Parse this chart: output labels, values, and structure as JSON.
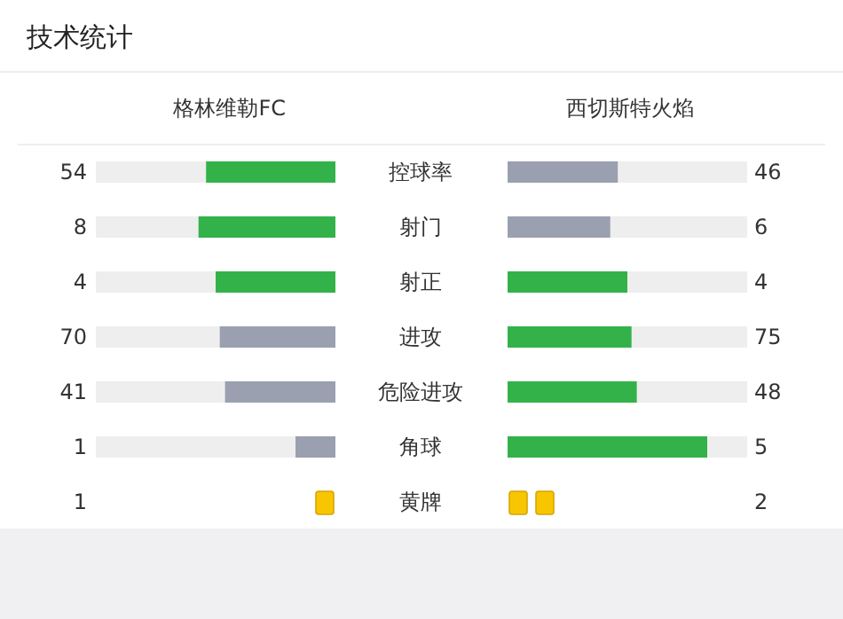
{
  "chart_data": {
    "type": "other",
    "title": "技术统计",
    "data_labels": true,
    "categories": [
      "控球率",
      "射门",
      "射正",
      "进攻",
      "危险进攻",
      "角球",
      "黄牌"
    ],
    "series": [
      {
        "name": "格林维勒FC",
        "values": [
          54,
          8,
          4,
          70,
          41,
          1,
          1
        ],
        "colors": [
          "#33b249",
          "#33b249",
          "#33b249",
          "#9aa0b0",
          "#9aa0b0",
          "#9aa0b0",
          "#f7c600"
        ]
      },
      {
        "name": "西切斯特火焰",
        "values": [
          46,
          6,
          4,
          75,
          48,
          5,
          2
        ],
        "colors": [
          "#9aa0b0",
          "#9aa0b0",
          "#33b249",
          "#33b249",
          "#33b249",
          "#33b249",
          "#f7c600"
        ]
      }
    ]
  }
}
